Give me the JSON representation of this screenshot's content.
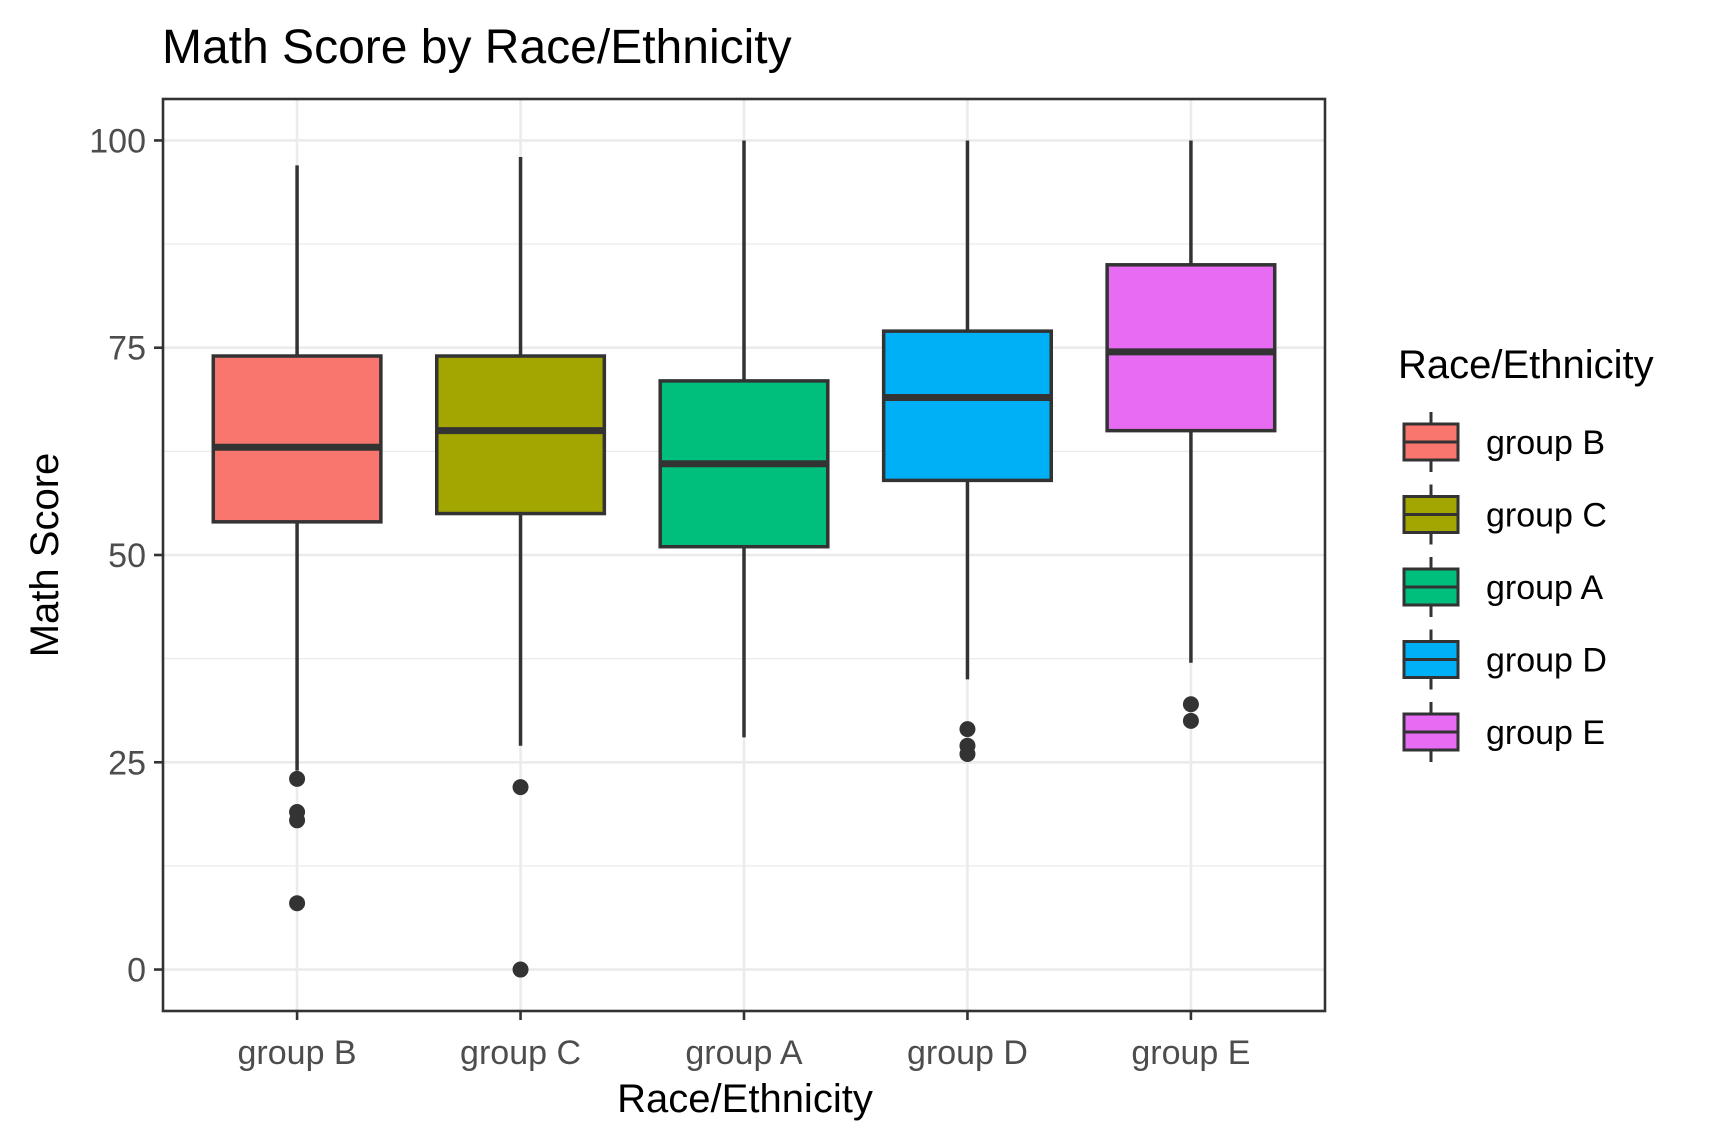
{
  "chart_data": {
    "type": "box",
    "title": "Math Score by Race/Ethnicity",
    "xlabel": "Race/Ethnicity",
    "ylabel": "Math Score",
    "ylim": [
      -5,
      105
    ],
    "yticks": [
      0,
      25,
      50,
      75,
      100
    ],
    "grid": true,
    "legend": {
      "title": "Race/Ethnicity",
      "position": "right"
    },
    "categories": [
      "group B",
      "group C",
      "group A",
      "group D",
      "group E"
    ],
    "series": [
      {
        "name": "group B",
        "color": "#F8766D",
        "whisker_low": 24,
        "q1": 54,
        "median": 63,
        "q3": 74,
        "whisker_high": 97,
        "outliers": [
          23,
          19,
          18,
          8
        ]
      },
      {
        "name": "group C",
        "color": "#A3A500",
        "whisker_low": 27,
        "q1": 55,
        "median": 65,
        "q3": 74,
        "whisker_high": 98,
        "outliers": [
          22,
          0
        ]
      },
      {
        "name": "group A",
        "color": "#00BF7D",
        "whisker_low": 28,
        "q1": 51,
        "median": 61,
        "q3": 71,
        "whisker_high": 100,
        "outliers": []
      },
      {
        "name": "group D",
        "color": "#00B0F6",
        "whisker_low": 35,
        "q1": 59,
        "median": 69,
        "q3": 77,
        "whisker_high": 100,
        "outliers": [
          29,
          27,
          26
        ]
      },
      {
        "name": "group E",
        "color": "#E76BF3",
        "whisker_low": 37,
        "q1": 65,
        "median": 74.5,
        "q3": 85,
        "whisker_high": 100,
        "outliers": [
          32,
          30
        ]
      }
    ]
  }
}
